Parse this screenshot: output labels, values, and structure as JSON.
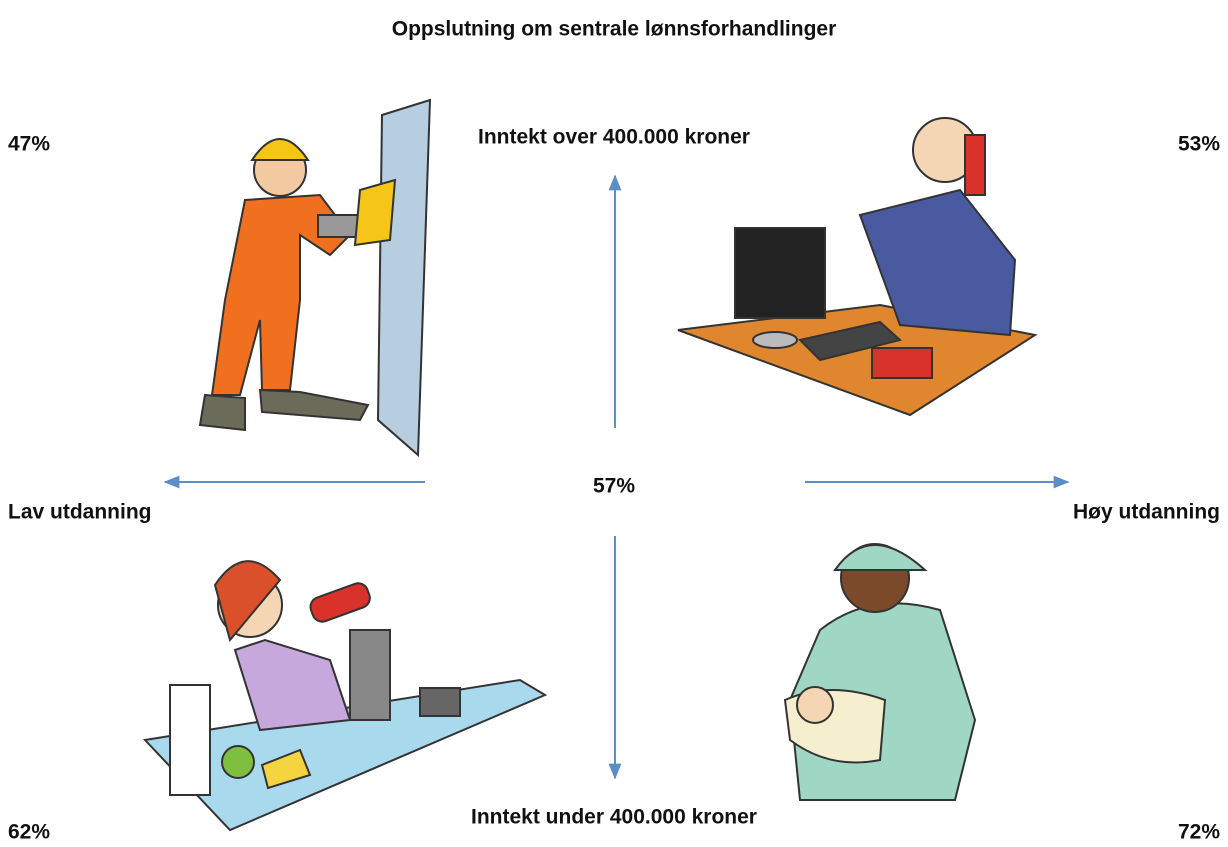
{
  "title": "Oppslutning om sentrale lønnsforhandlinger",
  "axes": {
    "top": "Inntekt over 400.000 kroner",
    "bottom": "Inntekt under 400.000 kroner",
    "left": "Lav utdanning",
    "right": "Høy utdanning"
  },
  "center": "57%",
  "quadrants": {
    "top_left": "47%",
    "top_right": "53%",
    "bottom_left": "62%",
    "bottom_right": "72%"
  }
}
